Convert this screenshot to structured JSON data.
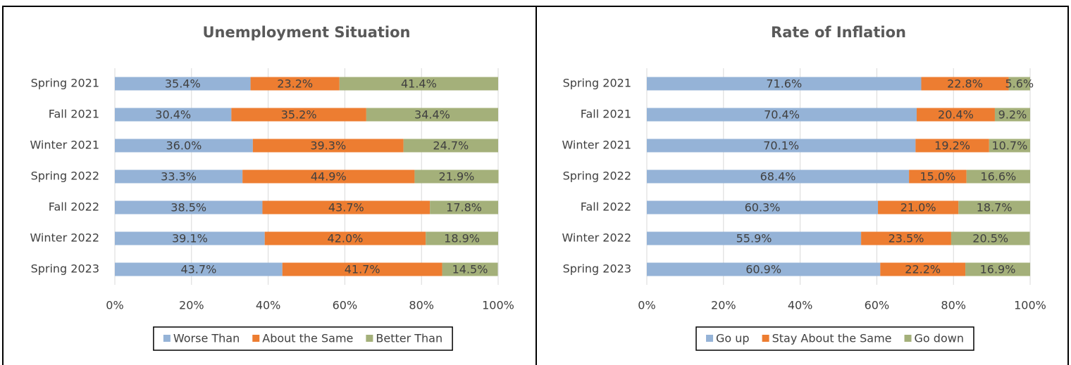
{
  "chart_data": [
    {
      "type": "bar",
      "orientation": "horizontal",
      "stacked": true,
      "title": "Unemployment Situation",
      "categories": [
        "Spring 2021",
        "Fall 2021",
        "Winter 2021",
        "Spring 2022",
        "Fall 2022",
        "Winter 2022",
        "Spring 2023"
      ],
      "series": [
        {
          "name": "Worse Than",
          "color": "#95b3d7",
          "values": [
            35.4,
            30.4,
            36.0,
            33.3,
            38.5,
            39.1,
            43.7
          ],
          "value_labels": [
            "35.4%",
            "30.4%",
            "36.0%",
            "33.3%",
            "38.5%",
            "39.1%",
            "43.7%"
          ]
        },
        {
          "name": "About the Same",
          "color": "#ed7d31",
          "values": [
            23.2,
            35.2,
            39.3,
            44.9,
            43.7,
            42.0,
            41.7
          ],
          "value_labels": [
            "23.2%",
            "35.2%",
            "39.3%",
            "44.9%",
            "43.7%",
            "42.0%",
            "41.7%"
          ]
        },
        {
          "name": "Better Than",
          "color": "#a4b07a",
          "values": [
            41.4,
            34.4,
            24.7,
            21.9,
            17.8,
            18.9,
            14.5
          ],
          "value_labels": [
            "41.4%",
            "34.4%",
            "24.7%",
            "21.9%",
            "17.8%",
            "18.9%",
            "14.5%"
          ]
        }
      ],
      "xlim": [
        0,
        100
      ],
      "xticks": [
        {
          "value": 0,
          "label": "0%"
        },
        {
          "value": 20,
          "label": "20%"
        },
        {
          "value": 40,
          "label": "40%"
        },
        {
          "value": 60,
          "label": "60%"
        },
        {
          "value": 80,
          "label": "80%"
        },
        {
          "value": 100,
          "label": "100%"
        }
      ],
      "grid": true,
      "legend": "bottom"
    },
    {
      "type": "bar",
      "orientation": "horizontal",
      "stacked": true,
      "title": "Rate of Inflation",
      "categories": [
        "Spring 2021",
        "Fall 2021",
        "Winter 2021",
        "Spring 2022",
        "Fall 2022",
        "Winter 2022",
        "Spring 2023"
      ],
      "series": [
        {
          "name": "Go up",
          "color": "#95b3d7",
          "values": [
            71.6,
            70.4,
            70.1,
            68.4,
            60.3,
            55.9,
            60.9
          ],
          "value_labels": [
            "71.6%",
            "70.4%",
            "70.1%",
            "68.4%",
            "60.3%",
            "55.9%",
            "60.9%"
          ]
        },
        {
          "name": "Stay About the Same",
          "color": "#ed7d31",
          "values": [
            22.8,
            20.4,
            19.2,
            15.0,
            21.0,
            23.5,
            22.2
          ],
          "value_labels": [
            "22.8%",
            "20.4%",
            "19.2%",
            "15.0%",
            "21.0%",
            "23.5%",
            "22.2%"
          ]
        },
        {
          "name": "Go down",
          "color": "#a4b07a",
          "values": [
            5.6,
            9.2,
            10.7,
            16.6,
            18.7,
            20.5,
            16.9
          ],
          "value_labels": [
            "5.6%",
            "9.2%",
            "10.7%",
            "16.6%",
            "18.7%",
            "20.5%",
            "16.9%"
          ]
        }
      ],
      "xlim": [
        0,
        100
      ],
      "xticks": [
        {
          "value": 0,
          "label": "0%"
        },
        {
          "value": 20,
          "label": "20%"
        },
        {
          "value": 40,
          "label": "40%"
        },
        {
          "value": 60,
          "label": "60%"
        },
        {
          "value": 80,
          "label": "80%"
        },
        {
          "value": 100,
          "label": "100%"
        }
      ],
      "grid": true,
      "legend": "bottom"
    }
  ]
}
